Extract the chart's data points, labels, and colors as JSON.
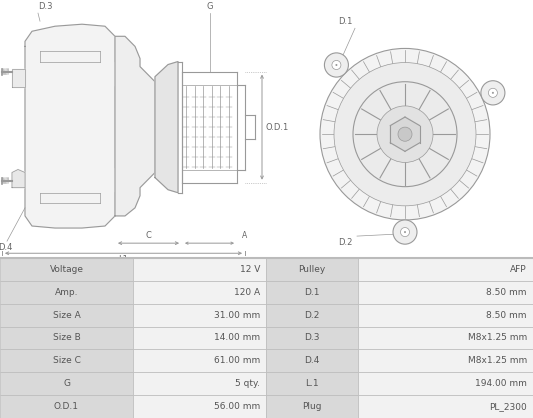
{
  "table_rows": [
    [
      "Voltage",
      "12 V",
      "Pulley",
      "AFP"
    ],
    [
      "Amp.",
      "120 A",
      "D.1",
      "8.50 mm"
    ],
    [
      "Size A",
      "31.00 mm",
      "D.2",
      "8.50 mm"
    ],
    [
      "Size B",
      "14.00 mm",
      "D.3",
      "M8x1.25 mm"
    ],
    [
      "Size C",
      "61.00 mm",
      "D.4",
      "M8x1.25 mm"
    ],
    [
      "G",
      "5 qty.",
      "L.1",
      "194.00 mm"
    ],
    [
      "O.D.1",
      "56.00 mm",
      "Plug",
      "PL_2300"
    ]
  ],
  "col_positions": [
    0,
    133,
    266,
    358,
    533
  ],
  "col_header_bg": "#d9d9d9",
  "col_data_bg": "#f2f2f2",
  "table_border_color": "#bbbbbb",
  "text_color": "#555555",
  "diagram_bg": "#ffffff",
  "diagram_line_color": "#999999",
  "label_color": "#666666",
  "lw_main": 0.8,
  "lw_thin": 0.5
}
